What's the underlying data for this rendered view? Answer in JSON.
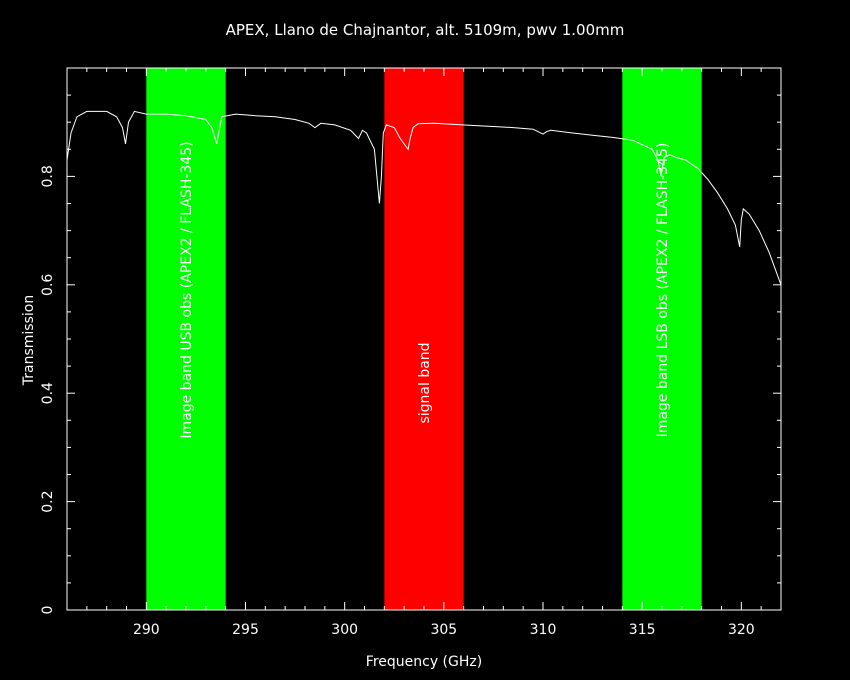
{
  "chart_data": {
    "type": "line",
    "title": "APEX, Llano de Chajnantor, alt. 5109m, pwv 1.00mm",
    "xlabel": "Frequency (GHz)",
    "ylabel": "Transmission",
    "xlim": [
      286,
      322
    ],
    "ylim": [
      0,
      1.0
    ],
    "x_ticks": [
      290,
      295,
      300,
      305,
      310,
      315,
      320
    ],
    "y_ticks": [
      0,
      0.2,
      0.4,
      0.6,
      0.8
    ],
    "y_tick_labels": [
      "0",
      "0.2",
      "0.4",
      "0.6",
      "0.8"
    ],
    "grid": false,
    "colors": {
      "background": "#000000",
      "line": "#ffffff",
      "image_band": "#00ff00",
      "signal_band": "#ff0000"
    },
    "bands": [
      {
        "name": "image-band-usb",
        "x0": 290.0,
        "x1": 294.0,
        "color": "#00ff00",
        "label": "Image band USB obs (APEX2 / FLASH-345)"
      },
      {
        "name": "signal-band",
        "x0": 302.0,
        "x1": 306.0,
        "color": "#ff0000",
        "label": "signal band"
      },
      {
        "name": "image-band-lsb",
        "x0": 314.0,
        "x1": 318.0,
        "color": "#00ff00",
        "label": "Image band LSB obs (APEX2 / FLASH-345)"
      }
    ],
    "series": [
      {
        "x": [
          286.0,
          286.2,
          286.5,
          287.0,
          287.5,
          288.0,
          288.5,
          288.8,
          288.95,
          289.1,
          289.4,
          290.0,
          291.0,
          292.0,
          293.0,
          293.3,
          293.55,
          293.8,
          294.5,
          295.5,
          296.5,
          297.5,
          298.2,
          298.5,
          298.8,
          299.5,
          300.3,
          300.7,
          300.9,
          301.1,
          301.5,
          301.75,
          301.85,
          301.95,
          302.1,
          302.5,
          302.8,
          303.2,
          303.3,
          303.45,
          303.7,
          304.5,
          305.5,
          306.5,
          307.5,
          308.5,
          309.5,
          310.0,
          310.2,
          310.4,
          311.5,
          312.5,
          313.5,
          314.5,
          315.5,
          315.8,
          315.95,
          316.1,
          316.4,
          316.7,
          317.2,
          317.8,
          318.3,
          318.8,
          319.3,
          319.7,
          319.92,
          320.0,
          320.1,
          320.4,
          320.9,
          321.4,
          322.0
        ],
        "y": [
          0.83,
          0.88,
          0.91,
          0.92,
          0.92,
          0.92,
          0.91,
          0.89,
          0.86,
          0.9,
          0.92,
          0.915,
          0.915,
          0.912,
          0.905,
          0.89,
          0.86,
          0.91,
          0.915,
          0.912,
          0.91,
          0.905,
          0.898,
          0.89,
          0.898,
          0.895,
          0.885,
          0.87,
          0.885,
          0.88,
          0.85,
          0.75,
          0.8,
          0.88,
          0.895,
          0.89,
          0.87,
          0.85,
          0.87,
          0.89,
          0.897,
          0.898,
          0.896,
          0.894,
          0.892,
          0.89,
          0.887,
          0.878,
          0.883,
          0.885,
          0.88,
          0.876,
          0.872,
          0.867,
          0.85,
          0.83,
          0.8,
          0.835,
          0.84,
          0.835,
          0.83,
          0.815,
          0.795,
          0.77,
          0.74,
          0.71,
          0.67,
          0.72,
          0.74,
          0.73,
          0.7,
          0.66,
          0.6
        ]
      }
    ]
  }
}
